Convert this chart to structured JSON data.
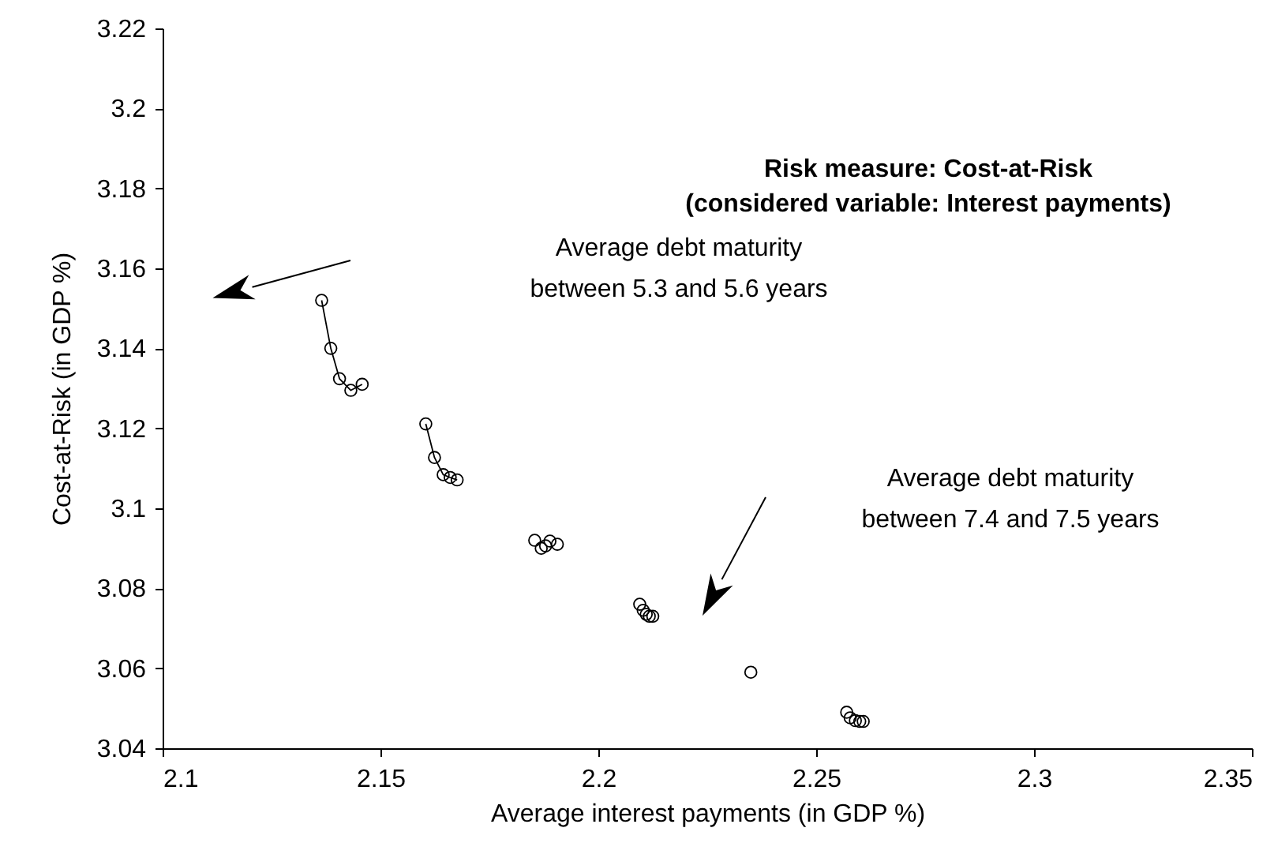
{
  "chart_data": {
    "type": "line",
    "title": "Risk measure: Cost-at-Risk",
    "subtitle": "(considered variable: Interest payments)",
    "xlabel": "Average interest payments (in GDP %)",
    "ylabel": "Cost-at-Risk (in GDP %)",
    "xlim": [
      2.1,
      2.35
    ],
    "xticks": [
      2.1,
      2.15,
      2.2,
      2.25,
      2.3,
      2.35
    ],
    "ylim": [
      3.04,
      3.22
    ],
    "yticks": [
      3.04,
      3.06,
      3.08,
      3.1,
      3.12,
      3.14,
      3.16,
      3.18,
      3.2,
      3.22
    ],
    "marker": "circle",
    "line_style": "solid",
    "grid": false,
    "series": [
      {
        "color": "#000000",
        "x": [
          2.1365,
          2.1386,
          2.1406,
          2.1432,
          2.1458
        ],
        "values": [
          3.152,
          3.14,
          3.1324,
          3.1295,
          3.131
        ]
      },
      {
        "color": "#000000",
        "x": [
          2.1604,
          2.1624,
          2.1644,
          2.166,
          2.1676
        ],
        "values": [
          3.1211,
          3.1127,
          3.1084,
          3.1077,
          3.1071
        ]
      },
      {
        "type": "scatter",
        "color": "#000000",
        "x": [
          2.1854,
          2.1869,
          2.1879,
          2.1889,
          2.1906
        ],
        "values": [
          3.092,
          3.09,
          3.0906,
          3.0918,
          3.091
        ]
      },
      {
        "type": "scatter",
        "color": "#000000",
        "x": [
          2.2095,
          2.2103,
          2.211,
          2.2117,
          2.2125
        ],
        "values": [
          3.076,
          3.0745,
          3.0735,
          3.073,
          3.073
        ]
      },
      {
        "type": "scatter",
        "color": "#000000",
        "x": [
          2.235
        ],
        "values": [
          3.059
        ]
      },
      {
        "type": "scatter",
        "color": "#000000",
        "x": [
          2.257,
          2.2578,
          2.259,
          2.26,
          2.2608
        ],
        "values": [
          3.049,
          3.0476,
          3.0469,
          3.0467,
          3.0467
        ]
      }
    ],
    "annotations": [
      "Average debt maturity\nbetween 5.3 and 5.6 years",
      "Average debt maturity\nbetween 7.4 and 7.5 years"
    ]
  }
}
